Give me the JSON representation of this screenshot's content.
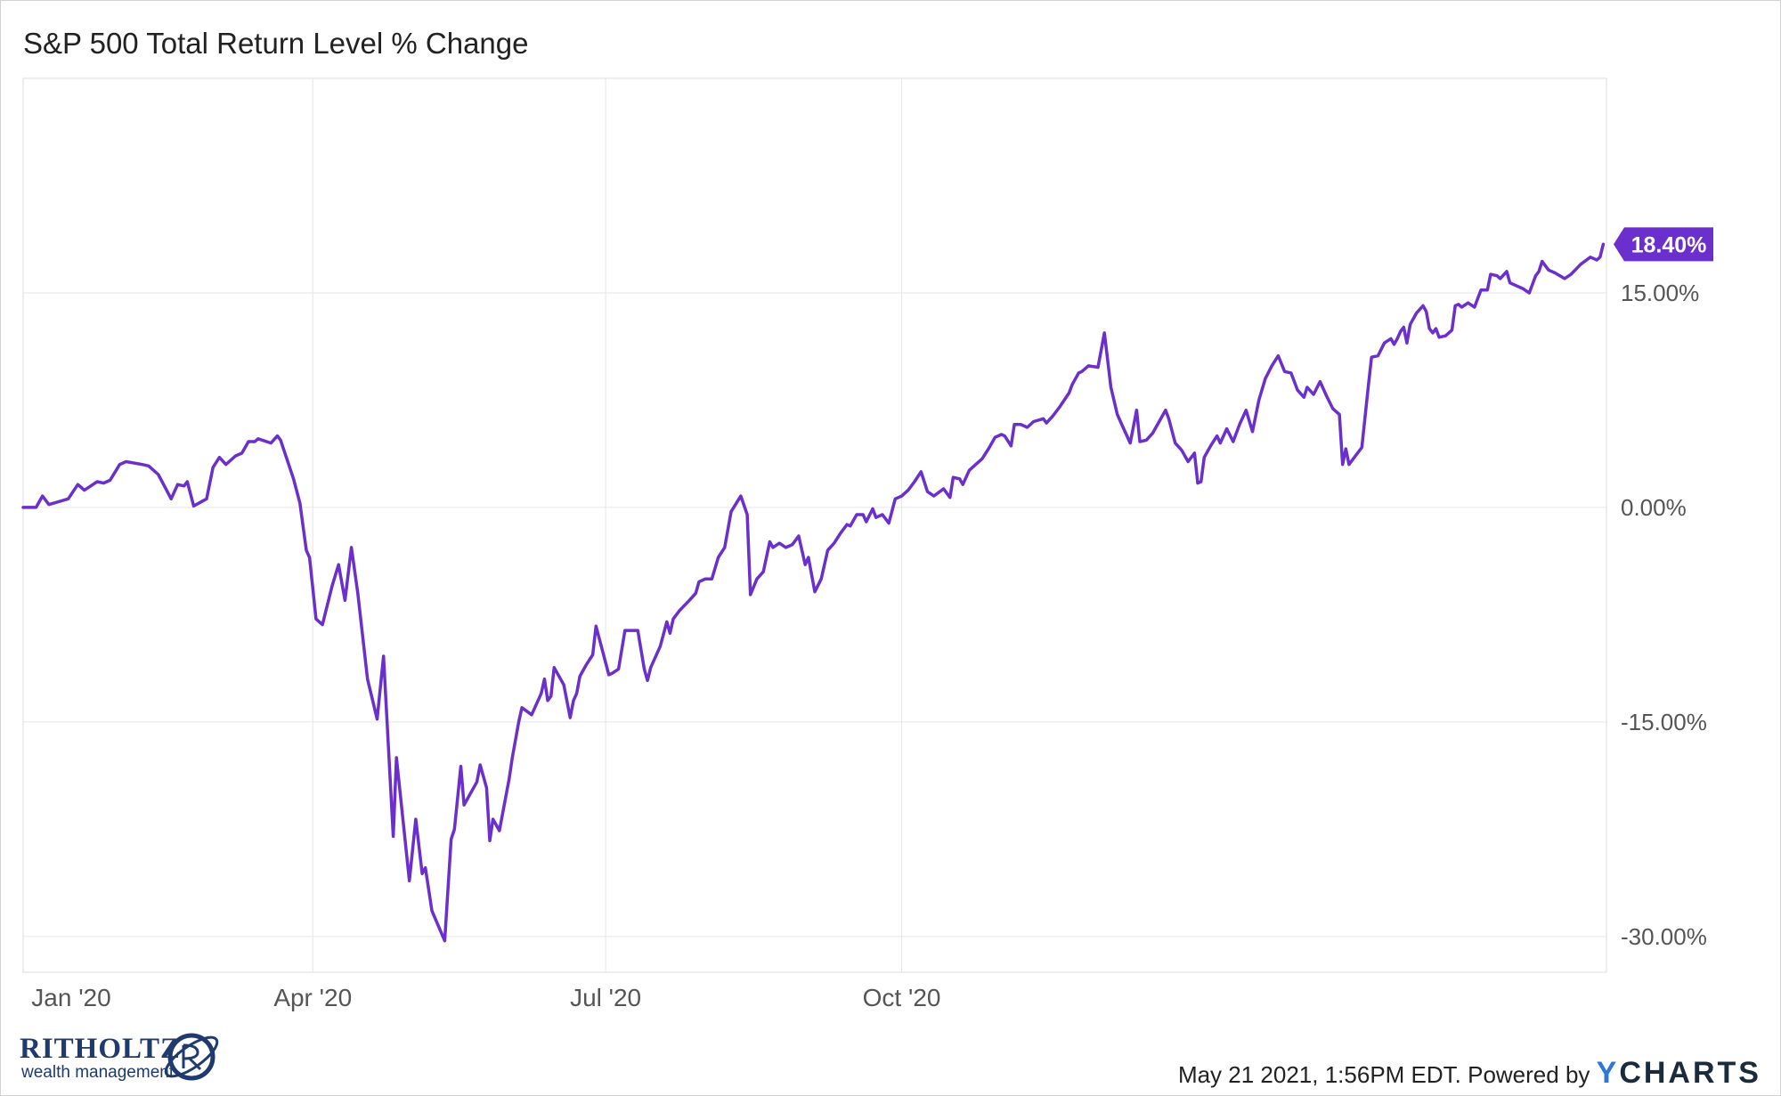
{
  "title": "S&P 500 Total Return Level % Change",
  "colors": {
    "line": "#6a2fcc",
    "grid": "#e6e6e6",
    "axis_text": "#555555",
    "brand_blue": "#2b79d6",
    "logo_navy": "#1e3a6e"
  },
  "end_label": "18.40%",
  "footer": {
    "text": "May 21 2021, 1:56PM EDT. Powered by ",
    "brand_y": "Y",
    "brand_rest": "CHARTS"
  },
  "logo": {
    "name": "RITHOLTZ",
    "sub": "wealth management",
    "icon": "globe-monogram-icon"
  },
  "chart_data": {
    "type": "line",
    "title": "S&P 500 Total Return Level % Change",
    "xlabel": "",
    "ylabel": "",
    "x_ticks": [
      "Jan '20",
      "Apr '20",
      "Jul '20",
      "Oct '20"
    ],
    "y_ticks": [
      "-30.00%",
      "-15.00%",
      "0.00%",
      "15.00%"
    ],
    "y_tick_values": [
      -30,
      -15,
      0,
      15
    ],
    "ylim": [
      -32.5,
      30
    ],
    "grid": true,
    "last_value_label": "18.40%",
    "series": [
      {
        "values": [
          [
            0,
            0
          ],
          [
            4,
            0
          ],
          [
            6,
            0.8
          ],
          [
            8,
            0.2
          ],
          [
            11,
            0.4
          ],
          [
            14,
            0.6
          ],
          [
            17,
            1.6
          ],
          [
            19,
            1.2
          ],
          [
            21,
            1.5
          ],
          [
            23,
            1.8
          ],
          [
            25,
            1.7
          ],
          [
            27,
            1.9
          ],
          [
            30,
            3.0
          ],
          [
            32,
            3.2
          ],
          [
            37,
            3.0
          ],
          [
            39,
            2.9
          ],
          [
            42,
            2.3
          ],
          [
            46,
            0.6
          ],
          [
            48,
            1.6
          ],
          [
            50,
            1.5
          ],
          [
            51,
            1.8
          ],
          [
            53,
            0.1
          ],
          [
            57,
            0.6
          ],
          [
            59,
            2.8
          ],
          [
            61,
            3.5
          ],
          [
            63,
            3.0
          ],
          [
            66,
            3.6
          ],
          [
            68,
            3.8
          ],
          [
            70,
            4.6
          ],
          [
            72,
            4.6
          ],
          [
            73,
            4.8
          ],
          [
            77,
            4.5
          ],
          [
            79,
            5.0
          ],
          [
            80,
            4.7
          ],
          [
            84,
            2.0
          ],
          [
            86,
            0.3
          ],
          [
            88,
            -3.0
          ],
          [
            89,
            -3.5
          ],
          [
            91,
            -7.8
          ],
          [
            93,
            -8.2
          ],
          [
            96,
            -5.5
          ],
          [
            98,
            -4.0
          ],
          [
            100,
            -6.5
          ],
          [
            102,
            -2.8
          ],
          [
            104,
            -6.0
          ],
          [
            107,
            -12.0
          ],
          [
            110,
            -14.8
          ],
          [
            112,
            -10.4
          ],
          [
            115,
            -23.0
          ],
          [
            116,
            -17.5
          ],
          [
            120,
            -26.1
          ],
          [
            122,
            -21.8
          ],
          [
            124,
            -25.6
          ],
          [
            125,
            -25.2
          ],
          [
            127,
            -28.2
          ],
          [
            131,
            -30.3
          ],
          [
            133,
            -23.2
          ],
          [
            134,
            -22.5
          ],
          [
            136,
            -18.1
          ],
          [
            137,
            -20.8
          ],
          [
            141,
            -19.2
          ],
          [
            142,
            -18.0
          ],
          [
            144,
            -19.6
          ],
          [
            145,
            -23.3
          ],
          [
            146,
            -21.8
          ],
          [
            148,
            -22.6
          ],
          [
            151,
            -19.0
          ],
          [
            152,
            -17.5
          ],
          [
            154,
            -15.0
          ],
          [
            155,
            -14.0
          ],
          [
            158,
            -14.5
          ],
          [
            161,
            -13.0
          ],
          [
            162,
            -12.0
          ],
          [
            163,
            -13.5
          ],
          [
            164,
            -13.2
          ],
          [
            165,
            -11.2
          ],
          [
            168,
            -12.4
          ],
          [
            170,
            -14.7
          ],
          [
            171,
            -13.5
          ],
          [
            172,
            -13.0
          ],
          [
            173,
            -11.8
          ],
          [
            175,
            -11.0
          ],
          [
            177,
            -10.3
          ],
          [
            178,
            -8.3
          ],
          [
            182,
            -11.7
          ],
          [
            183,
            -11.6
          ],
          [
            185,
            -11.3
          ],
          [
            187,
            -8.6
          ],
          [
            191,
            -8.6
          ],
          [
            193,
            -11.3
          ],
          [
            194,
            -12.1
          ],
          [
            195,
            -11.2
          ],
          [
            198,
            -9.7
          ],
          [
            200,
            -8.0
          ],
          [
            201,
            -8.8
          ],
          [
            202,
            -7.8
          ],
          [
            204,
            -7.2
          ],
          [
            207,
            -6.5
          ],
          [
            209,
            -6.0
          ],
          [
            210,
            -5.2
          ],
          [
            212,
            -5.0
          ],
          [
            214,
            -5.0
          ],
          [
            216,
            -3.5
          ],
          [
            218,
            -2.8
          ],
          [
            220,
            -0.3
          ],
          [
            223,
            0.8
          ],
          [
            225,
            -0.5
          ],
          [
            226,
            -6.1
          ],
          [
            228,
            -5.0
          ],
          [
            230,
            -4.5
          ],
          [
            232,
            -2.4
          ],
          [
            233,
            -2.8
          ],
          [
            235,
            -2.5
          ],
          [
            237,
            -2.8
          ],
          [
            239,
            -2.6
          ],
          [
            241,
            -2.0
          ],
          [
            243,
            -4.0
          ],
          [
            244,
            -3.5
          ],
          [
            246,
            -5.9
          ],
          [
            248,
            -5.0
          ],
          [
            250,
            -3.0
          ],
          [
            252,
            -2.5
          ],
          [
            254,
            -1.8
          ],
          [
            256,
            -1.2
          ],
          [
            257,
            -1.3
          ],
          [
            259,
            -0.5
          ],
          [
            261,
            -0.5
          ],
          [
            262,
            -1.0
          ],
          [
            264,
            -0.1
          ],
          [
            265,
            -0.7
          ],
          [
            267,
            -0.5
          ],
          [
            269,
            -1.1
          ],
          [
            271,
            0.6
          ],
          [
            273,
            0.8
          ],
          [
            275,
            1.2
          ],
          [
            277,
            1.8
          ],
          [
            279,
            2.5
          ],
          [
            281,
            1.1
          ],
          [
            283,
            0.8
          ],
          [
            286,
            1.3
          ],
          [
            288,
            0.7
          ],
          [
            289,
            2.1
          ],
          [
            291,
            2.0
          ],
          [
            292,
            1.6
          ],
          [
            294,
            2.6
          ],
          [
            296,
            3.0
          ],
          [
            298,
            3.4
          ],
          [
            300,
            4.1
          ],
          [
            302,
            4.9
          ],
          [
            304,
            5.1
          ],
          [
            305,
            5.0
          ],
          [
            307,
            4.3
          ],
          [
            308,
            5.8
          ],
          [
            310,
            5.8
          ],
          [
            312,
            5.6
          ],
          [
            314,
            6.0
          ],
          [
            317,
            6.2
          ],
          [
            318,
            5.9
          ],
          [
            320,
            6.4
          ],
          [
            322,
            7.0
          ],
          [
            325,
            8.0
          ],
          [
            326,
            8.6
          ],
          [
            328,
            9.4
          ],
          [
            329,
            9.5
          ],
          [
            331,
            9.9
          ],
          [
            334,
            9.8
          ],
          [
            336,
            12.2
          ],
          [
            338,
            8.4
          ],
          [
            340,
            6.5
          ],
          [
            342,
            5.5
          ],
          [
            344,
            4.5
          ],
          [
            346,
            6.8
          ],
          [
            347,
            4.6
          ],
          [
            349,
            4.7
          ],
          [
            351,
            5.2
          ],
          [
            353,
            6.0
          ],
          [
            355,
            6.8
          ],
          [
            356,
            6.2
          ],
          [
            358,
            4.5
          ],
          [
            360,
            4.0
          ],
          [
            362,
            3.2
          ],
          [
            364,
            3.8
          ],
          [
            365,
            1.7
          ],
          [
            366,
            1.8
          ],
          [
            367,
            3.5
          ],
          [
            369,
            4.3
          ],
          [
            371,
            5.0
          ],
          [
            372,
            4.5
          ],
          [
            374,
            5.5
          ],
          [
            376,
            4.6
          ],
          [
            378,
            5.8
          ],
          [
            380,
            6.8
          ],
          [
            382,
            5.3
          ],
          [
            384,
            7.5
          ],
          [
            386,
            9.0
          ],
          [
            388,
            9.9
          ],
          [
            390,
            10.6
          ],
          [
            392,
            9.5
          ],
          [
            394,
            9.4
          ],
          [
            396,
            8.2
          ],
          [
            398,
            7.7
          ],
          [
            399,
            8.4
          ],
          [
            401,
            7.9
          ],
          [
            403,
            8.8
          ],
          [
            405,
            7.8
          ],
          [
            407,
            6.9
          ],
          [
            409,
            6.5
          ],
          [
            410,
            3.0
          ],
          [
            411,
            4.1
          ],
          [
            412,
            3.0
          ],
          [
            414,
            3.6
          ],
          [
            416,
            4.2
          ],
          [
            418,
            8.5
          ],
          [
            419,
            10.5
          ],
          [
            421,
            10.6
          ],
          [
            423,
            11.5
          ],
          [
            425,
            11.8
          ],
          [
            426,
            11.4
          ],
          [
            427,
            11.8
          ],
          [
            428,
            12.3
          ],
          [
            429,
            12.6
          ],
          [
            430,
            11.5
          ],
          [
            431,
            12.8
          ],
          [
            433,
            13.6
          ],
          [
            435,
            14.1
          ],
          [
            436,
            13.7
          ],
          [
            437,
            12.5
          ],
          [
            438,
            12.2
          ],
          [
            439,
            12.5
          ],
          [
            440,
            11.9
          ],
          [
            442,
            12.0
          ],
          [
            444,
            12.4
          ],
          [
            445,
            14.1
          ],
          [
            446,
            14.2
          ],
          [
            447,
            14.0
          ],
          [
            449,
            14.3
          ],
          [
            451,
            14.0
          ],
          [
            452,
            14.6
          ],
          [
            453,
            15.2
          ],
          [
            455,
            15.2
          ],
          [
            456,
            16.3
          ],
          [
            458,
            16.2
          ],
          [
            459,
            16.0
          ],
          [
            461,
            16.5
          ],
          [
            462,
            15.7
          ],
          [
            466,
            15.3
          ],
          [
            468,
            15.0
          ],
          [
            470,
            16.2
          ],
          [
            471,
            16.5
          ],
          [
            472,
            17.2
          ],
          [
            474,
            16.6
          ],
          [
            476,
            16.4
          ],
          [
            479,
            16.0
          ],
          [
            481,
            16.3
          ],
          [
            484,
            17.0
          ],
          [
            487,
            17.5
          ],
          [
            489,
            17.3
          ],
          [
            490,
            17.5
          ],
          [
            491,
            18.4
          ]
        ]
      }
    ]
  }
}
